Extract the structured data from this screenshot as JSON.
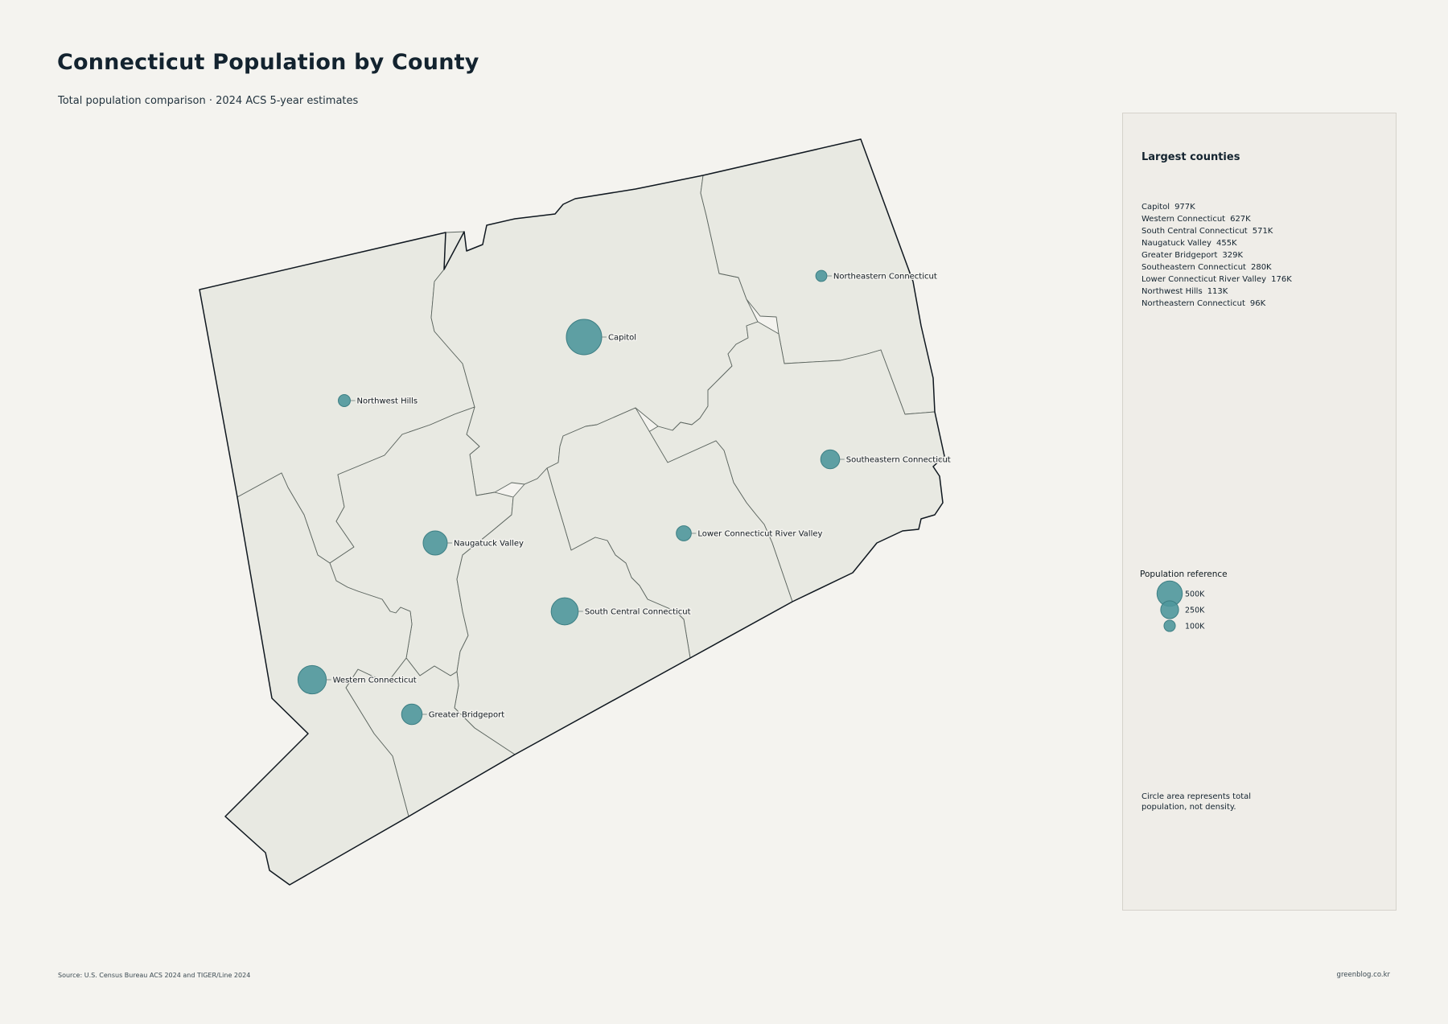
{
  "header": {
    "title": "Connecticut Population by County",
    "subtitle": "Total population comparison · 2024 ACS 5-year estimates"
  },
  "map": {
    "counties": [
      {
        "name": "Capitol",
        "population": 977000,
        "label": "Capitol"
      },
      {
        "name": "Western Connecticut",
        "population": 627000,
        "label": "Western Connecticut"
      },
      {
        "name": "South Central Connecticut",
        "population": 571000,
        "label": "South Central Connecticut"
      },
      {
        "name": "Naugatuck Valley",
        "population": 455000,
        "label": "Naugatuck Valley"
      },
      {
        "name": "Greater Bridgeport",
        "population": 329000,
        "label": "Greater Bridgeport"
      },
      {
        "name": "Southeastern Connecticut",
        "population": 280000,
        "label": "Southeastern Connecticut"
      },
      {
        "name": "Lower Connecticut River Valley",
        "population": 176000,
        "label": "Lower Connecticut River Valley"
      },
      {
        "name": "Northwest Hills",
        "population": 113000,
        "label": "Northwest Hills"
      },
      {
        "name": "Northeastern Connecticut",
        "population": 96000,
        "label": "Northeastern Connecticut"
      }
    ],
    "colors": {
      "background": "#f4f3ef",
      "land": "#e8e9e2",
      "bubble": "#4f979c",
      "outline": "#101820"
    }
  },
  "panel": {
    "title": "Largest counties",
    "ranking": [
      {
        "name": "Capitol",
        "value": "977K"
      },
      {
        "name": "Western Connecticut",
        "value": "627K"
      },
      {
        "name": "South Central Connecticut",
        "value": "571K"
      },
      {
        "name": "Naugatuck Valley",
        "value": "455K"
      },
      {
        "name": "Greater Bridgeport",
        "value": "329K"
      },
      {
        "name": "Southeastern Connecticut",
        "value": "280K"
      },
      {
        "name": "Lower Connecticut River Valley",
        "value": "176K"
      },
      {
        "name": "Northwest Hills",
        "value": "113K"
      },
      {
        "name": "Northeastern Connecticut",
        "value": "96K"
      }
    ],
    "legend": {
      "title": "Population reference",
      "items": [
        {
          "label": "500K",
          "population": 500000
        },
        {
          "label": "250K",
          "population": 250000
        },
        {
          "label": "100K",
          "population": 100000
        }
      ]
    },
    "note": "Circle area represents total population, not density."
  },
  "footer": {
    "source": "Source: U.S. Census Bureau ACS 2024 and TIGER/Line 2024",
    "credit": "greenblog.co.kr"
  }
}
